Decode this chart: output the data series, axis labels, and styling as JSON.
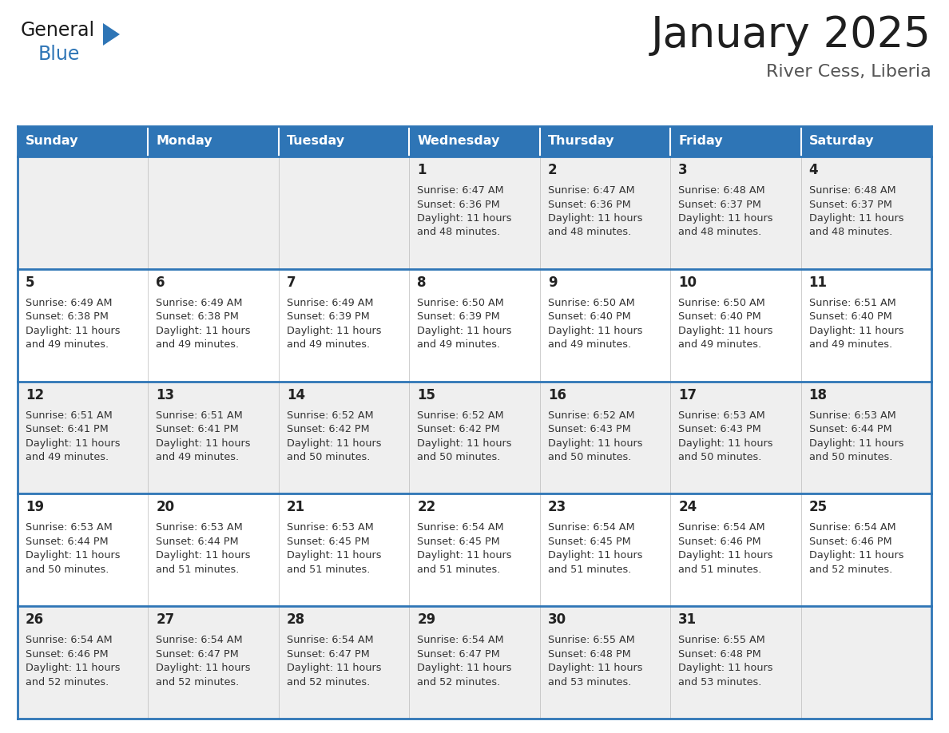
{
  "title": "January 2025",
  "subtitle": "River Cess, Liberia",
  "days_of_week": [
    "Sunday",
    "Monday",
    "Tuesday",
    "Wednesday",
    "Thursday",
    "Friday",
    "Saturday"
  ],
  "header_bg": "#2E75B6",
  "header_text": "#FFFFFF",
  "cell_bg_odd": "#EFEFEF",
  "cell_bg_even": "#FFFFFF",
  "border_color": "#2E75B6",
  "title_color": "#1F1F1F",
  "subtitle_color": "#555555",
  "day_num_color": "#222222",
  "cell_text_color": "#333333",
  "calendar_data": [
    [
      null,
      null,
      null,
      {
        "day": 1,
        "sunrise": "6:47 AM",
        "sunset": "6:36 PM",
        "daylight": "11 hours and 48 minutes"
      },
      {
        "day": 2,
        "sunrise": "6:47 AM",
        "sunset": "6:36 PM",
        "daylight": "11 hours and 48 minutes"
      },
      {
        "day": 3,
        "sunrise": "6:48 AM",
        "sunset": "6:37 PM",
        "daylight": "11 hours and 48 minutes"
      },
      {
        "day": 4,
        "sunrise": "6:48 AM",
        "sunset": "6:37 PM",
        "daylight": "11 hours and 48 minutes"
      }
    ],
    [
      {
        "day": 5,
        "sunrise": "6:49 AM",
        "sunset": "6:38 PM",
        "daylight": "11 hours and 49 minutes"
      },
      {
        "day": 6,
        "sunrise": "6:49 AM",
        "sunset": "6:38 PM",
        "daylight": "11 hours and 49 minutes"
      },
      {
        "day": 7,
        "sunrise": "6:49 AM",
        "sunset": "6:39 PM",
        "daylight": "11 hours and 49 minutes"
      },
      {
        "day": 8,
        "sunrise": "6:50 AM",
        "sunset": "6:39 PM",
        "daylight": "11 hours and 49 minutes"
      },
      {
        "day": 9,
        "sunrise": "6:50 AM",
        "sunset": "6:40 PM",
        "daylight": "11 hours and 49 minutes"
      },
      {
        "day": 10,
        "sunrise": "6:50 AM",
        "sunset": "6:40 PM",
        "daylight": "11 hours and 49 minutes"
      },
      {
        "day": 11,
        "sunrise": "6:51 AM",
        "sunset": "6:40 PM",
        "daylight": "11 hours and 49 minutes"
      }
    ],
    [
      {
        "day": 12,
        "sunrise": "6:51 AM",
        "sunset": "6:41 PM",
        "daylight": "11 hours and 49 minutes"
      },
      {
        "day": 13,
        "sunrise": "6:51 AM",
        "sunset": "6:41 PM",
        "daylight": "11 hours and 49 minutes"
      },
      {
        "day": 14,
        "sunrise": "6:52 AM",
        "sunset": "6:42 PM",
        "daylight": "11 hours and 50 minutes"
      },
      {
        "day": 15,
        "sunrise": "6:52 AM",
        "sunset": "6:42 PM",
        "daylight": "11 hours and 50 minutes"
      },
      {
        "day": 16,
        "sunrise": "6:52 AM",
        "sunset": "6:43 PM",
        "daylight": "11 hours and 50 minutes"
      },
      {
        "day": 17,
        "sunrise": "6:53 AM",
        "sunset": "6:43 PM",
        "daylight": "11 hours and 50 minutes"
      },
      {
        "day": 18,
        "sunrise": "6:53 AM",
        "sunset": "6:44 PM",
        "daylight": "11 hours and 50 minutes"
      }
    ],
    [
      {
        "day": 19,
        "sunrise": "6:53 AM",
        "sunset": "6:44 PM",
        "daylight": "11 hours and 50 minutes"
      },
      {
        "day": 20,
        "sunrise": "6:53 AM",
        "sunset": "6:44 PM",
        "daylight": "11 hours and 51 minutes"
      },
      {
        "day": 21,
        "sunrise": "6:53 AM",
        "sunset": "6:45 PM",
        "daylight": "11 hours and 51 minutes"
      },
      {
        "day": 22,
        "sunrise": "6:54 AM",
        "sunset": "6:45 PM",
        "daylight": "11 hours and 51 minutes"
      },
      {
        "day": 23,
        "sunrise": "6:54 AM",
        "sunset": "6:45 PM",
        "daylight": "11 hours and 51 minutes"
      },
      {
        "day": 24,
        "sunrise": "6:54 AM",
        "sunset": "6:46 PM",
        "daylight": "11 hours and 51 minutes"
      },
      {
        "day": 25,
        "sunrise": "6:54 AM",
        "sunset": "6:46 PM",
        "daylight": "11 hours and 52 minutes"
      }
    ],
    [
      {
        "day": 26,
        "sunrise": "6:54 AM",
        "sunset": "6:46 PM",
        "daylight": "11 hours and 52 minutes"
      },
      {
        "day": 27,
        "sunrise": "6:54 AM",
        "sunset": "6:47 PM",
        "daylight": "11 hours and 52 minutes"
      },
      {
        "day": 28,
        "sunrise": "6:54 AM",
        "sunset": "6:47 PM",
        "daylight": "11 hours and 52 minutes"
      },
      {
        "day": 29,
        "sunrise": "6:54 AM",
        "sunset": "6:47 PM",
        "daylight": "11 hours and 52 minutes"
      },
      {
        "day": 30,
        "sunrise": "6:55 AM",
        "sunset": "6:48 PM",
        "daylight": "11 hours and 53 minutes"
      },
      {
        "day": 31,
        "sunrise": "6:55 AM",
        "sunset": "6:48 PM",
        "daylight": "11 hours and 53 minutes"
      },
      null
    ]
  ]
}
